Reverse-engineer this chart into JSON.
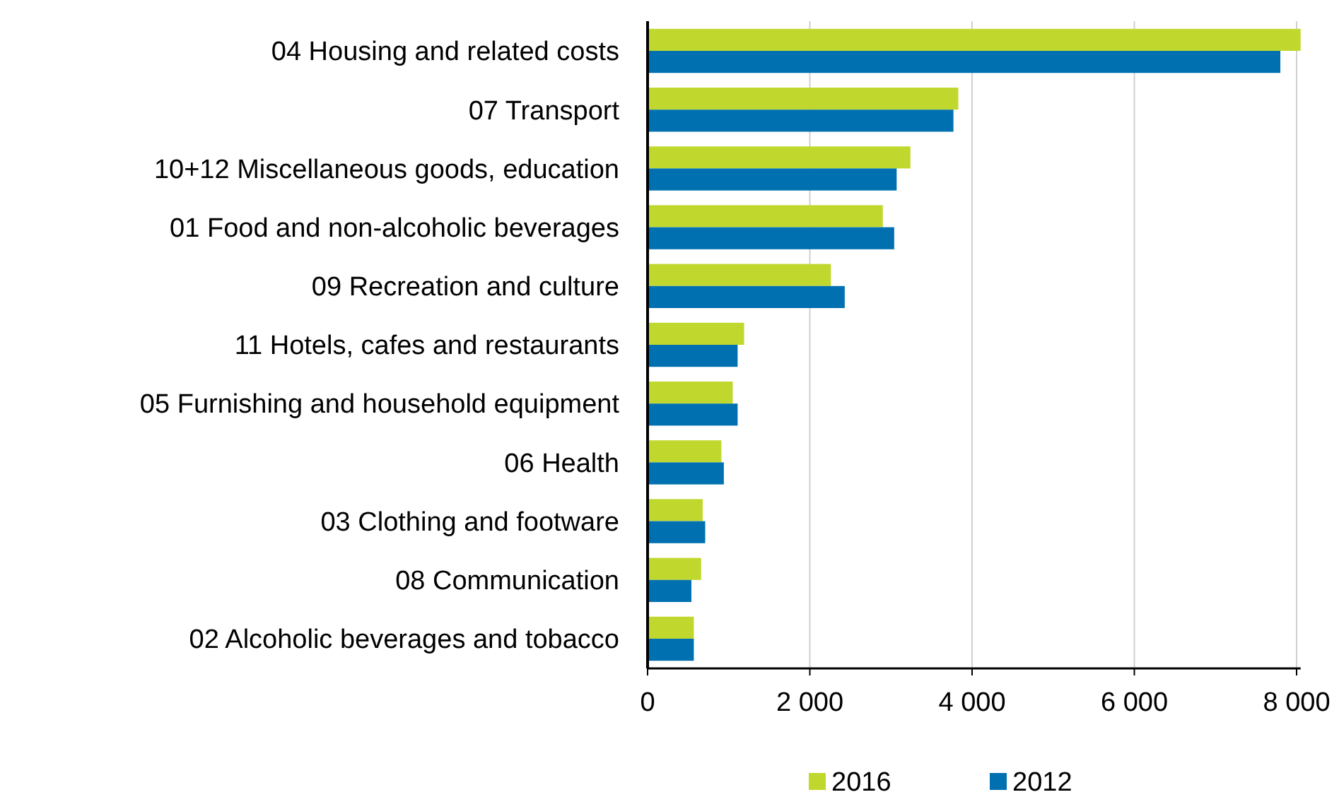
{
  "chart_data": {
    "type": "bar",
    "orientation": "horizontal",
    "categories": [
      "04 Housing and related costs",
      "07 Transport",
      "10+12 Miscellaneous goods, education",
      "01 Food and non-alcoholic beverages",
      "09 Recreation and culture",
      "11 Hotels, cafes and restaurants",
      "05 Furnishing and household equipment",
      "06 Health",
      "03 Clothing and footware",
      "08 Communication",
      "02 Alcoholic beverages and tobacco"
    ],
    "series": [
      {
        "name": "2016",
        "color": "#c0d82e",
        "values": [
          8050,
          3830,
          3240,
          2900,
          2260,
          1190,
          1050,
          910,
          680,
          660,
          570
        ]
      },
      {
        "name": "2012",
        "color": "#0070b0",
        "values": [
          7800,
          3770,
          3070,
          3040,
          2430,
          1110,
          1110,
          940,
          710,
          540,
          570
        ]
      }
    ],
    "xlim": [
      0,
      8050
    ],
    "xticks": [
      0,
      {
        "value": 2000,
        "label": "2 000"
      },
      {
        "value": 4000,
        "label": "4 000"
      },
      {
        "value": 6000,
        "label": "6 000"
      },
      {
        "value": 8000,
        "label": "8 000"
      }
    ],
    "grid": "x",
    "legend": "bottom"
  }
}
